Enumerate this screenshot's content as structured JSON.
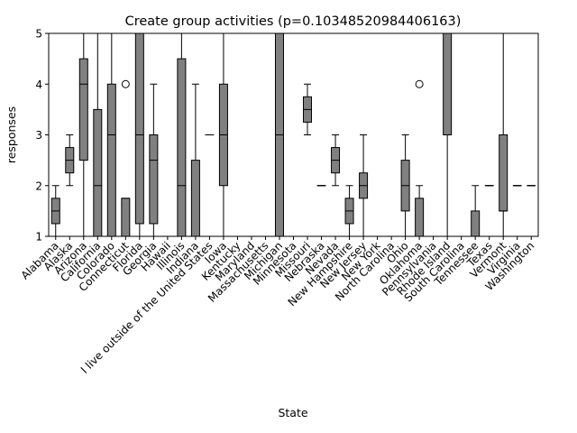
{
  "chart_data": {
    "type": "boxplot",
    "title": "Create group activities (p=0.10348520984406163)",
    "xlabel": "State",
    "ylabel": "responses",
    "ylim": [
      1,
      5
    ],
    "yticks": [
      "1",
      "2",
      "3",
      "4",
      "5"
    ],
    "grid": false,
    "box_color": "#808080",
    "categories": [
      "Alabama",
      "Alaska",
      "Arizona",
      "California",
      "Colorado",
      "Connecticut",
      "Florida",
      "Georgia",
      "Hawaii",
      "Illinois",
      "Indiana",
      "I live outside of the United States",
      "Iowa",
      "Kentucky",
      "Maryland",
      "Massachusetts",
      "Michigan",
      "Minnesota",
      "Missouri",
      "Nebraska",
      "Nevada",
      "New Hampshire",
      "New Jersey",
      "New York",
      "North Carolina",
      "Ohio",
      "Oklahoma",
      "Pennsylvania",
      "Rhode Island",
      "South Carolina",
      "Tennessee",
      "Texas",
      "Vermont",
      "Virginia",
      "Washington"
    ],
    "boxes": [
      {
        "whislo": 1,
        "q1": 1.25,
        "med": 1.5,
        "q3": 1.75,
        "whishi": 2,
        "fliers": []
      },
      {
        "whislo": 2,
        "q1": 2.25,
        "med": 2.5,
        "q3": 2.75,
        "whishi": 3,
        "fliers": []
      },
      {
        "whislo": 1,
        "q1": 2.5,
        "med": 4,
        "q3": 4.5,
        "whishi": 5,
        "fliers": []
      },
      {
        "whislo": 1,
        "q1": 1,
        "med": 2,
        "q3": 3.5,
        "whishi": 5,
        "fliers": []
      },
      {
        "whislo": 1,
        "q1": 1,
        "med": 3,
        "q3": 4,
        "whishi": 5,
        "fliers": []
      },
      {
        "whislo": 1,
        "q1": 1,
        "med": 1,
        "q3": 1.75,
        "whishi": 1.75,
        "fliers": [
          4
        ]
      },
      {
        "whislo": 1,
        "q1": 1.25,
        "med": 3,
        "q3": 5,
        "whishi": 5,
        "fliers": []
      },
      {
        "whislo": 1,
        "q1": 1.25,
        "med": 2.5,
        "q3": 3,
        "whishi": 4,
        "fliers": []
      },
      {
        "whislo": 1,
        "q1": 1,
        "med": 1,
        "q3": 1,
        "whishi": 1,
        "fliers": []
      },
      {
        "whislo": 1,
        "q1": 1,
        "med": 2,
        "q3": 4.5,
        "whishi": 5,
        "fliers": []
      },
      {
        "whislo": 1,
        "q1": 1,
        "med": 1,
        "q3": 2.5,
        "whishi": 4,
        "fliers": []
      },
      {
        "whislo": 3,
        "q1": 3,
        "med": 3,
        "q3": 3,
        "whishi": 3,
        "fliers": []
      },
      {
        "whislo": 1,
        "q1": 2,
        "med": 3,
        "q3": 4,
        "whishi": 5,
        "fliers": []
      },
      {
        "whislo": 1,
        "q1": 1,
        "med": 1,
        "q3": 1,
        "whishi": 1,
        "fliers": []
      },
      {
        "whislo": 1,
        "q1": 1,
        "med": 1,
        "q3": 1,
        "whishi": 1,
        "fliers": []
      },
      {
        "whislo": 1,
        "q1": 1,
        "med": 1,
        "q3": 1,
        "whishi": 1,
        "fliers": []
      },
      {
        "whislo": 1,
        "q1": 1,
        "med": 3,
        "q3": 5,
        "whishi": 5,
        "fliers": []
      },
      {
        "whislo": 1,
        "q1": 1,
        "med": 1,
        "q3": 1,
        "whishi": 1,
        "fliers": []
      },
      {
        "whislo": 3,
        "q1": 3.25,
        "med": 3.5,
        "q3": 3.75,
        "whishi": 4,
        "fliers": []
      },
      {
        "whislo": 2,
        "q1": 2,
        "med": 2,
        "q3": 2,
        "whishi": 2,
        "fliers": []
      },
      {
        "whislo": 2,
        "q1": 2.25,
        "med": 2.5,
        "q3": 2.75,
        "whishi": 3,
        "fliers": []
      },
      {
        "whislo": 1,
        "q1": 1.25,
        "med": 1.5,
        "q3": 1.75,
        "whishi": 2,
        "fliers": []
      },
      {
        "whislo": 1,
        "q1": 1.75,
        "med": 2,
        "q3": 2.25,
        "whishi": 3,
        "fliers": []
      },
      {
        "whislo": 1,
        "q1": 1,
        "med": 1,
        "q3": 1,
        "whishi": 1,
        "fliers": []
      },
      {
        "whislo": 1,
        "q1": 1,
        "med": 1,
        "q3": 1,
        "whishi": 1,
        "fliers": []
      },
      {
        "whislo": 1,
        "q1": 1.5,
        "med": 2,
        "q3": 2.5,
        "whishi": 3,
        "fliers": []
      },
      {
        "whislo": 1,
        "q1": 1,
        "med": 1,
        "q3": 1.75,
        "whishi": 2,
        "fliers": [
          4
        ]
      },
      {
        "whislo": 1,
        "q1": 1,
        "med": 1,
        "q3": 1,
        "whishi": 1,
        "fliers": []
      },
      {
        "whislo": 1,
        "q1": 3,
        "med": 5,
        "q3": 5,
        "whishi": 5,
        "fliers": []
      },
      {
        "whislo": 1,
        "q1": 1,
        "med": 1,
        "q3": 1,
        "whishi": 1,
        "fliers": []
      },
      {
        "whislo": 1,
        "q1": 1,
        "med": 1,
        "q3": 1.5,
        "whishi": 2,
        "fliers": []
      },
      {
        "whislo": 2,
        "q1": 2,
        "med": 2,
        "q3": 2,
        "whishi": 2,
        "fliers": []
      },
      {
        "whislo": 1,
        "q1": 1.5,
        "med": 1.5,
        "q3": 3,
        "whishi": 5,
        "fliers": []
      },
      {
        "whislo": 2,
        "q1": 2,
        "med": 2,
        "q3": 2,
        "whishi": 2,
        "fliers": []
      },
      {
        "whislo": 2,
        "q1": 2,
        "med": 2,
        "q3": 2,
        "whishi": 2,
        "fliers": []
      }
    ]
  }
}
